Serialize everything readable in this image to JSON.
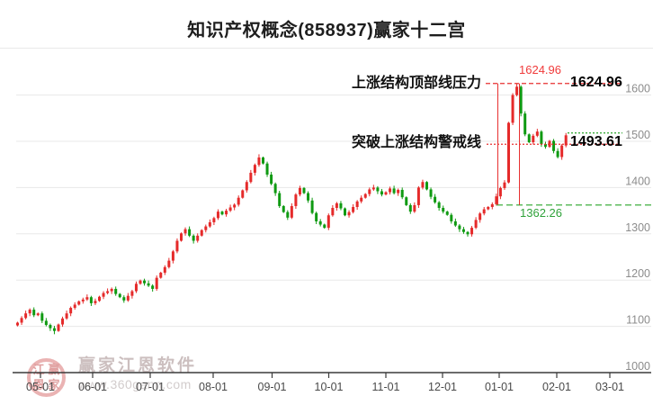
{
  "header": {
    "title": "知识产权概念(858937)赢家十二宫"
  },
  "watermark": {
    "brand": "赢家江恩软件",
    "url": "www.360gann.com",
    "seal_chars": [
      "江",
      "赢",
      "恩",
      "家"
    ]
  },
  "chart_data": {
    "type": "candlestick",
    "title": "知识产权概念(858937)赢家十二宫",
    "ylabel": "",
    "xlabel": "",
    "ylim": [
      1000,
      1660
    ],
    "grid": true,
    "y_axis": {
      "ticks": [
        1600,
        1500,
        1400,
        1300,
        1200,
        1100,
        1000
      ]
    },
    "x_axis": {
      "labels": [
        "05-01",
        "06-01",
        "07-01",
        "08-01",
        "09-01",
        "10-01",
        "11-01",
        "12-01",
        "01-01",
        "02-01",
        "03-01"
      ]
    },
    "closes": [
      1108,
      1118,
      1128,
      1136,
      1124,
      1128,
      1112,
      1103,
      1096,
      1090,
      1104,
      1117,
      1128,
      1140,
      1147,
      1154,
      1158,
      1163,
      1150,
      1155,
      1164,
      1172,
      1176,
      1181,
      1170,
      1163,
      1156,
      1166,
      1176,
      1192,
      1199,
      1193,
      1188,
      1181,
      1205,
      1216,
      1228,
      1242,
      1262,
      1285,
      1301,
      1310,
      1296,
      1285,
      1296,
      1308,
      1316,
      1325,
      1334,
      1348,
      1342,
      1350,
      1357,
      1363,
      1378,
      1394,
      1412,
      1432,
      1449,
      1465,
      1452,
      1428,
      1408,
      1388,
      1360,
      1347,
      1335,
      1360,
      1385,
      1399,
      1388,
      1372,
      1345,
      1327,
      1320,
      1313,
      1340,
      1356,
      1366,
      1355,
      1340,
      1347,
      1358,
      1370,
      1378,
      1386,
      1396,
      1400,
      1392,
      1385,
      1390,
      1398,
      1388,
      1395,
      1379,
      1362,
      1348,
      1362,
      1400,
      1412,
      1396,
      1380,
      1368,
      1356,
      1348,
      1341,
      1327,
      1318,
      1310,
      1304,
      1299,
      1313,
      1330,
      1344,
      1353,
      1358,
      1364,
      1381,
      1399,
      1411,
      1540,
      1600,
      1618,
      1560,
      1515,
      1498,
      1512,
      1521,
      1494,
      1488,
      1501,
      1479,
      1466,
      1491,
      1513
    ],
    "extremes": {
      "high": 1624.96,
      "start_low": 1083,
      "sept_peak_high": 1472,
      "dec_low": 1294
    },
    "annotations": {
      "top_pressure": {
        "label": "上涨结构顶部线压力",
        "value": 1624.96,
        "value_label": "1624.96"
      },
      "alert": {
        "label": "突破上涨结构警戒线",
        "value": 1493.61,
        "value_label": "1493.61"
      },
      "low": {
        "value": 1362.26,
        "value_label": "1362.26"
      },
      "last_level": {
        "value": 1518
      }
    },
    "colors": {
      "up": "#e52a2a",
      "down": "#0f9a12",
      "grid": "#e8e8e8",
      "axis": "#3a3a3a",
      "y_label": "#8c8c8c",
      "x_label": "#4a4a4a",
      "annotation_red": "#e83030",
      "annotation_green": "#2aa52a",
      "title": "#1e1e1e"
    },
    "legend": null
  }
}
